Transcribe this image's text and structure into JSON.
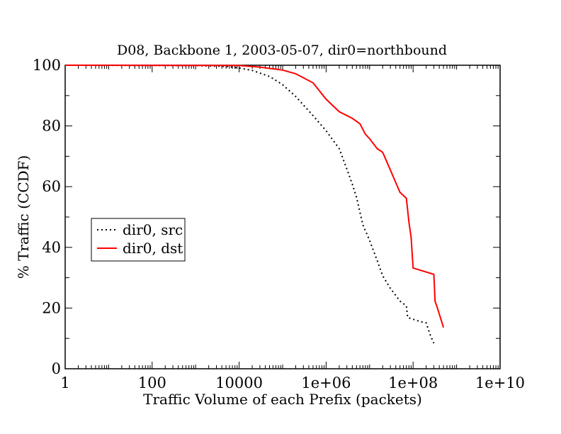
{
  "chart_data": {
    "type": "line",
    "title": "D08, Backbone 1, 2003-05-07, dir0=northbound",
    "xlabel": "Traffic Volume of each Prefix (packets)",
    "ylabel": "% Traffic (CCDF)",
    "xscale": "log",
    "xlim": [
      1,
      10000000000
    ],
    "ylim": [
      0,
      100
    ],
    "x_ticks": [
      1,
      100,
      10000,
      1000000,
      100000000,
      10000000000
    ],
    "x_tick_labels": [
      "1",
      "100",
      "10000",
      "1e+06",
      "1e+08",
      "1e+10"
    ],
    "y_ticks": [
      0,
      20,
      40,
      60,
      80,
      100
    ],
    "y_tick_labels": [
      "0",
      "20",
      "40",
      "60",
      "80",
      "100"
    ],
    "grid": false,
    "legend_position": "left-middle",
    "series": [
      {
        "name": "dir0, src",
        "color": "#000000",
        "style": "dotted",
        "points": [
          [
            1,
            100
          ],
          [
            1000,
            99.9
          ],
          [
            5000,
            99.6
          ],
          [
            10000,
            99.1
          ],
          [
            20000,
            98.3
          ],
          [
            50000,
            96.3
          ],
          [
            100000,
            93.6
          ],
          [
            200000,
            89.7
          ],
          [
            500000,
            83.4
          ],
          [
            1000000,
            78.4
          ],
          [
            2000000,
            72.5
          ],
          [
            3000000,
            65.8
          ],
          [
            4000000,
            60.8
          ],
          [
            5000000,
            56.5
          ],
          [
            7000000,
            47.4
          ],
          [
            10000000,
            42.3
          ],
          [
            15000000,
            35.6
          ],
          [
            20000000,
            30.6
          ],
          [
            30000000,
            26.5
          ],
          [
            50000000,
            22.3
          ],
          [
            70000000,
            20.7
          ],
          [
            75000000,
            16.9
          ],
          [
            150000000,
            15.5
          ],
          [
            200000000,
            15.1
          ],
          [
            250000000,
            11
          ],
          [
            300000000,
            8.4
          ]
        ]
      },
      {
        "name": "dir0, dst",
        "color": "#ff0000",
        "style": "solid",
        "points": [
          [
            1,
            100
          ],
          [
            10000,
            99.9
          ],
          [
            30000,
            99.4
          ],
          [
            100000,
            98.4
          ],
          [
            200000,
            97.2
          ],
          [
            500000,
            94.2
          ],
          [
            1000000,
            88.8
          ],
          [
            2000000,
            84.7
          ],
          [
            4000000,
            82.5
          ],
          [
            6000000,
            80.7
          ],
          [
            8000000,
            77.3
          ],
          [
            10000000,
            75.8
          ],
          [
            15000000,
            72.5
          ],
          [
            20000000,
            71.3
          ],
          [
            30000000,
            65.5
          ],
          [
            50000000,
            58.1
          ],
          [
            70000000,
            56.2
          ],
          [
            80000000,
            48.5
          ],
          [
            90000000,
            43.3
          ],
          [
            100000000,
            33.2
          ],
          [
            300000000,
            31.1
          ],
          [
            320000000,
            22.2
          ],
          [
            350000000,
            20.7
          ],
          [
            500000000,
            13.6
          ]
        ]
      }
    ]
  }
}
